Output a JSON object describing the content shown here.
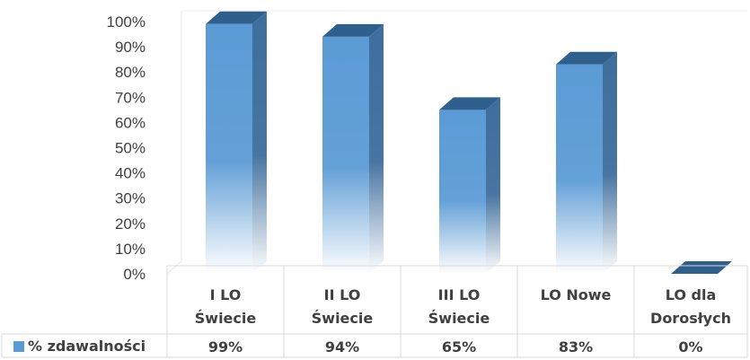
{
  "chart_data": {
    "type": "bar",
    "style": "3d-column-with-data-table",
    "categories": [
      [
        "I LO",
        "Świecie"
      ],
      [
        "II LO",
        "Świecie"
      ],
      [
        "III LO",
        "Świecie"
      ],
      [
        "LO Nowe"
      ],
      [
        "LO dla",
        "Dorosłych"
      ]
    ],
    "series": [
      {
        "name": "% zdawalności",
        "values": [
          99,
          94,
          65,
          83,
          0
        ],
        "labels": [
          "99%",
          "94%",
          "65%",
          "83%",
          "0%"
        ]
      }
    ],
    "y_ticks": [
      "0%",
      "10%",
      "20%",
      "30%",
      "40%",
      "50%",
      "60%",
      "70%",
      "80%",
      "90%",
      "100%"
    ],
    "ylim": [
      0,
      100
    ],
    "grid": false,
    "legend": "data-table-left",
    "colors": {
      "bar_front": "#5b9bd5",
      "bar_side": "#3e6e9d",
      "bar_top": "#2f5f8d",
      "table_border": "#d9d9d9",
      "text": "#404040"
    }
  }
}
